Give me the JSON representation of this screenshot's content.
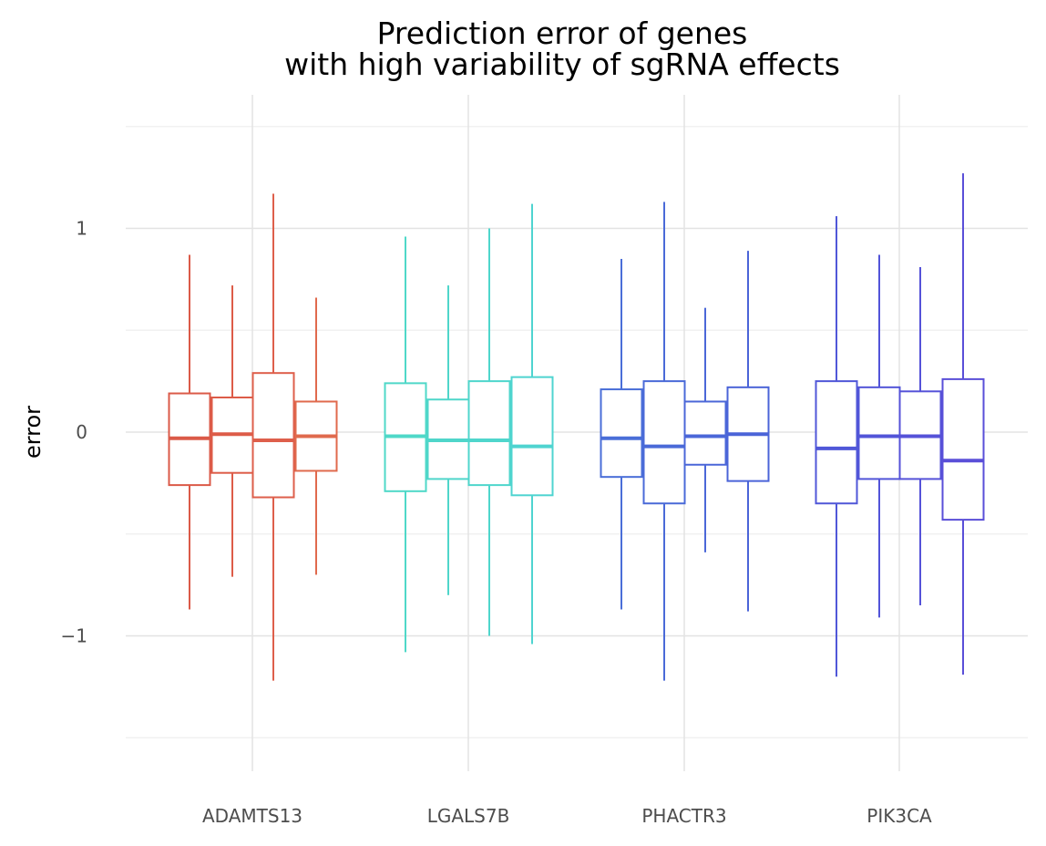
{
  "chart_data": {
    "type": "boxplot",
    "title_lines": [
      "Prediction error of genes",
      "with high variability of sgRNA effects"
    ],
    "xlabel": "",
    "ylabel": "error",
    "ylim": [
      -1.67,
      1.65
    ],
    "y_ticks": [
      -1,
      0,
      1
    ],
    "y_tick_labels": [
      "−1",
      "0",
      "1"
    ],
    "grid": true,
    "legend": "none",
    "categories": [
      "ADAMTS13",
      "LGALS7B",
      "PHACTR3",
      "PIK3CA"
    ],
    "groups": [
      {
        "name": "ADAMTS13",
        "boxes": [
          {
            "whisker_low": -0.87,
            "q1": -0.26,
            "median": -0.03,
            "q3": 0.19,
            "whisker_high": 0.87,
            "color": "#db5a48"
          },
          {
            "whisker_low": -0.71,
            "q1": -0.2,
            "median": -0.01,
            "q3": 0.17,
            "whisker_high": 0.72,
            "color": "#dd5c48"
          },
          {
            "whisker_low": -1.22,
            "q1": -0.32,
            "median": -0.04,
            "q3": 0.29,
            "whisker_high": 1.17,
            "color": "#de5f4b"
          },
          {
            "whisker_low": -0.7,
            "q1": -0.19,
            "median": -0.02,
            "q3": 0.15,
            "whisker_high": 0.66,
            "color": "#e06a4d"
          }
        ]
      },
      {
        "name": "LGALS7B",
        "boxes": [
          {
            "whisker_low": -1.08,
            "q1": -0.29,
            "median": -0.02,
            "q3": 0.24,
            "whisker_high": 0.96,
            "color": "#4fd8c8"
          },
          {
            "whisker_low": -0.8,
            "q1": -0.23,
            "median": -0.04,
            "q3": 0.16,
            "whisker_high": 0.72,
            "color": "#4fd6ca"
          },
          {
            "whisker_low": -1.0,
            "q1": -0.26,
            "median": -0.04,
            "q3": 0.25,
            "whisker_high": 1.0,
            "color": "#4fd6cc"
          },
          {
            "whisker_low": -1.04,
            "q1": -0.31,
            "median": -0.07,
            "q3": 0.27,
            "whisker_high": 1.12,
            "color": "#4fd4d0"
          }
        ]
      },
      {
        "name": "PHACTR3",
        "boxes": [
          {
            "whisker_low": -0.87,
            "q1": -0.22,
            "median": -0.03,
            "q3": 0.21,
            "whisker_high": 0.85,
            "color": "#4a6ed8"
          },
          {
            "whisker_low": -1.22,
            "q1": -0.35,
            "median": -0.07,
            "q3": 0.25,
            "whisker_high": 1.13,
            "color": "#4a6ad8"
          },
          {
            "whisker_low": -0.59,
            "q1": -0.16,
            "median": -0.02,
            "q3": 0.15,
            "whisker_high": 0.61,
            "color": "#4b67d8"
          },
          {
            "whisker_low": -0.88,
            "q1": -0.24,
            "median": -0.01,
            "q3": 0.22,
            "whisker_high": 0.89,
            "color": "#4b64d8"
          }
        ]
      },
      {
        "name": "PIK3CA",
        "boxes": [
          {
            "whisker_low": -1.2,
            "q1": -0.35,
            "median": -0.08,
            "q3": 0.25,
            "whisker_high": 1.06,
            "color": "#5057d8"
          },
          {
            "whisker_low": -0.91,
            "q1": -0.23,
            "median": -0.02,
            "q3": 0.22,
            "whisker_high": 0.87,
            "color": "#5254d8"
          },
          {
            "whisker_low": -0.85,
            "q1": -0.23,
            "median": -0.02,
            "q3": 0.2,
            "whisker_high": 0.81,
            "color": "#5552d8"
          },
          {
            "whisker_low": -1.19,
            "q1": -0.43,
            "median": -0.14,
            "q3": 0.26,
            "whisker_high": 1.27,
            "color": "#5a4fd8"
          }
        ]
      }
    ]
  }
}
